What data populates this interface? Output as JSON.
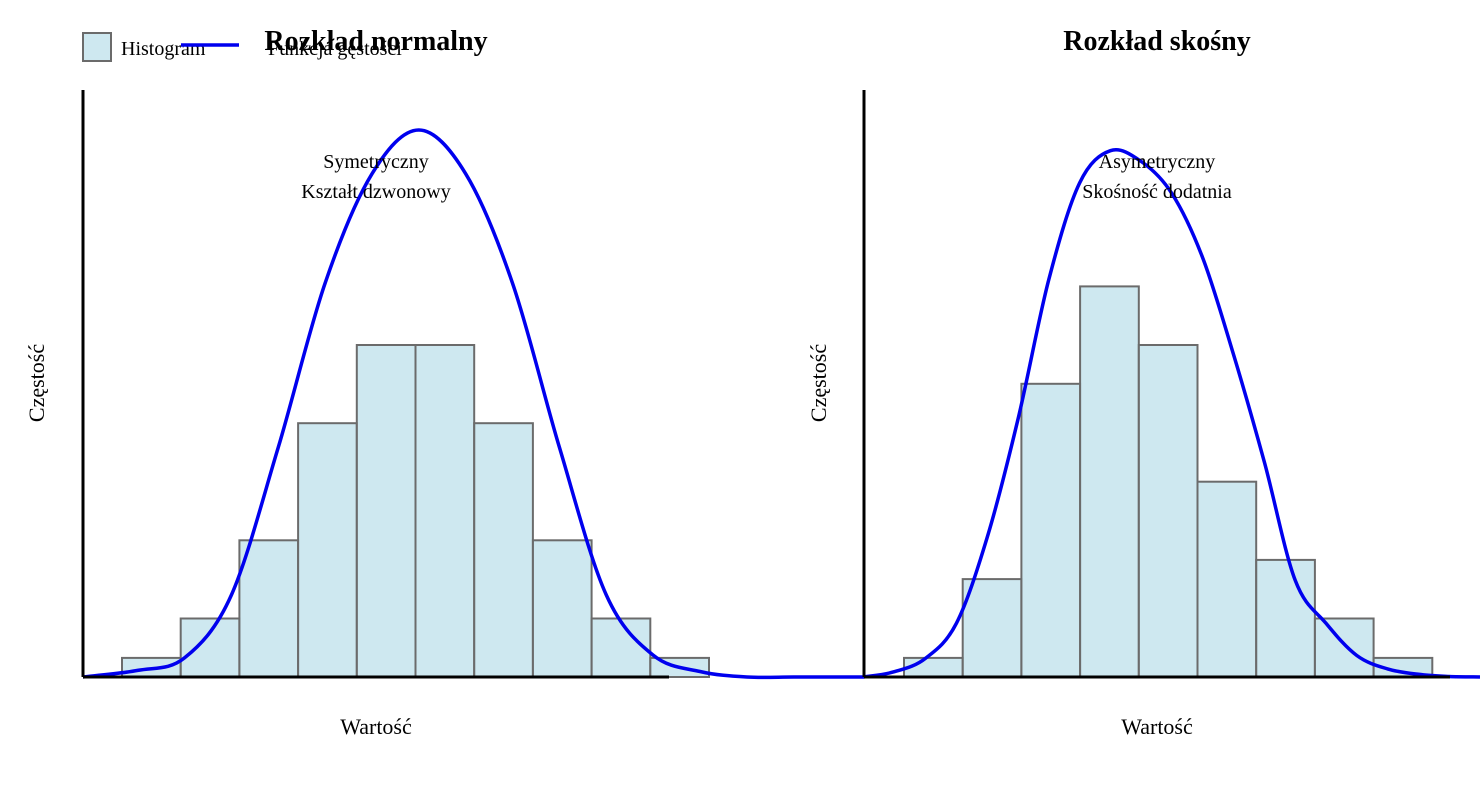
{
  "legend": {
    "items": [
      {
        "label": "Histogram",
        "kind": "bar-swatch",
        "color": "#add8e6"
      },
      {
        "label": "Funkcja gęstości",
        "kind": "line",
        "color": "#0000ee"
      }
    ]
  },
  "chart_data": [
    {
      "type": "bar",
      "title": "Rozkład normalny",
      "xlabel": "Wartość",
      "ylabel": "Częstość",
      "annotation": [
        "Symetryczny",
        "Kształt dzwonowy"
      ],
      "bars_relative": [
        0.035,
        0.107,
        0.25,
        0.464,
        0.607,
        0.607,
        0.464,
        0.25,
        0.107,
        0.035
      ],
      "density_curve": {
        "name": "Funkcja gęstości",
        "x_fraction": [
          0,
          0.07,
          0.13,
          0.19,
          0.25,
          0.31,
          0.37,
          0.43,
          0.49,
          0.55,
          0.61,
          0.67,
          0.73,
          0.79,
          0.85,
          0.91,
          0.97,
          1.0
        ],
        "y_relative": [
          0.0,
          0.012,
          0.035,
          0.15,
          0.42,
          0.72,
          0.92,
          1.0,
          0.92,
          0.72,
          0.42,
          0.15,
          0.04,
          0.01,
          0.0,
          0.0,
          0.0,
          0.0
        ]
      },
      "grid": false
    },
    {
      "type": "bar",
      "title": "Rozkład skośny",
      "xlabel": "Wartość",
      "ylabel": "Częstość",
      "annotation": [
        "Asymetryczny",
        "Skośność dodatnia"
      ],
      "bars_relative": [
        0.035,
        0.179,
        0.536,
        0.714,
        0.607,
        0.357,
        0.214,
        0.107,
        0.035
      ],
      "density_curve": {
        "name": "Funkcja gęstości",
        "x_fraction": [
          0,
          0.05,
          0.1,
          0.15,
          0.2,
          0.25,
          0.3,
          0.35,
          0.4,
          0.45,
          0.5,
          0.55,
          0.6,
          0.65,
          0.7,
          0.75,
          0.8,
          0.85,
          0.9,
          0.95,
          1.0
        ],
        "y_relative": [
          0.0,
          0.01,
          0.035,
          0.1,
          0.26,
          0.48,
          0.74,
          0.92,
          0.98,
          0.96,
          0.9,
          0.78,
          0.6,
          0.4,
          0.18,
          0.1,
          0.04,
          0.015,
          0.005,
          0.001,
          0.0
        ]
      },
      "grid": false
    }
  ]
}
